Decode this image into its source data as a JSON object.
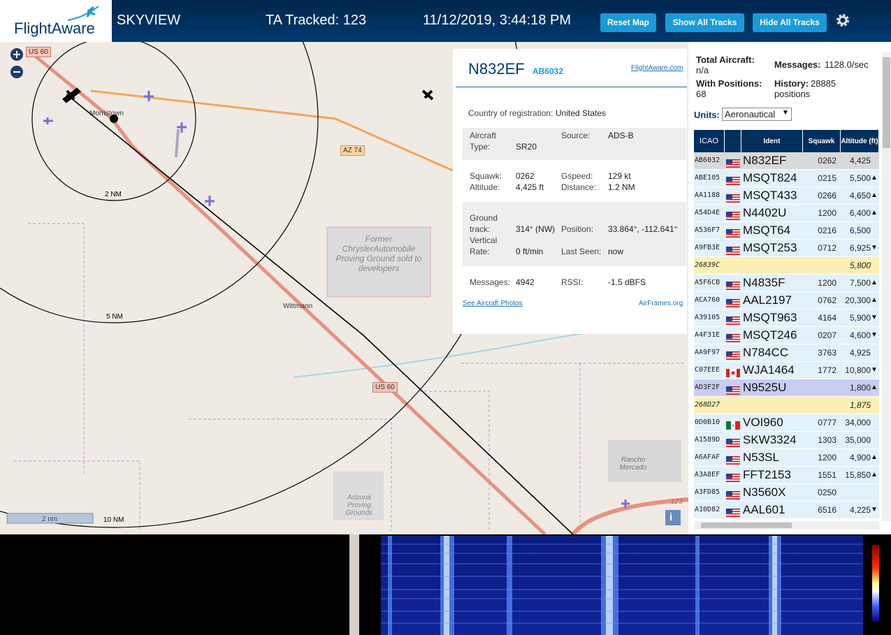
{
  "header": {
    "logo": "FlightAware",
    "title": "SKYVIEW",
    "tracked": "TA Tracked: 123",
    "datetime": "11/12/2019, 3:44:18 PM",
    "buttons": [
      "Reset Map",
      "Show All Tracks",
      "Hide All Tracks"
    ]
  },
  "map": {
    "labels": [
      "US 60",
      "AZ 74",
      "Morristown",
      "Wittmann",
      "2 NM",
      "5 NM",
      "10 NM",
      "US 60",
      "Former ChryslerAutomobile Proving Ground sold to developers",
      "Arizona Proving Grounds",
      "Rancho Mercado",
      "123"
    ],
    "scale": "2 nm",
    "info": "i"
  },
  "popup": {
    "ident": "N832EF",
    "icao": "AB6032",
    "link": "FlightAware.com",
    "country_label": "Country of registration:",
    "country": "United States",
    "fields": [
      {
        "label": "Aircraft Type:",
        "value": "SR20"
      },
      {
        "label": "Source:",
        "value": "ADS-B"
      },
      {
        "label": "Squawk:",
        "value": "0262"
      },
      {
        "label": "Gspeed:",
        "value": "129 kt"
      },
      {
        "label": "Altitude:",
        "value": "4,425 ft"
      },
      {
        "label": "Distance:",
        "value": "1.2 NM"
      },
      {
        "label": "Ground track:",
        "value": "314° (NW)"
      },
      {
        "label": "Position:",
        "value": "33.864°, -112.641°"
      },
      {
        "label": "Vertical Rate:",
        "value": "0 ft/min"
      },
      {
        "label": "Last Seen:",
        "value": "now"
      },
      {
        "label": "Messages:",
        "value": "4942"
      },
      {
        "label": "RSSI:",
        "value": "-1.5 dBFS"
      }
    ],
    "photos": "See Aircraft Photos",
    "airframes": "AirFrames.org"
  },
  "sidebar": {
    "total_label": "Total Aircraft:",
    "total": "n/a",
    "messages_label": "Messages:",
    "messages": "1128.0/sec",
    "positions_label": "With Positions:",
    "positions": "68",
    "history_label": "History:",
    "history": "28885 positions",
    "units_label": "Units:",
    "units": "Aeronautical"
  },
  "aircraft_table": {
    "columns": [
      "ICAO",
      "Ident",
      "Squawk",
      "Altitude (ft)"
    ],
    "rows": [
      {
        "icao": "AB6032",
        "flag": "us",
        "ident": "N832EF",
        "squawk": "0262",
        "altitude": "4,425",
        "trend": null,
        "color": "#d9d9d9"
      },
      {
        "icao": "ABE105",
        "flag": "us",
        "ident": "MSQT824",
        "squawk": "0215",
        "altitude": "5,500",
        "trend": "▲",
        "color": "#e3f1fb"
      },
      {
        "icao": "AA1188",
        "flag": "us",
        "ident": "MSQT433",
        "squawk": "0266",
        "altitude": "4,650",
        "trend": "▲",
        "color": "#e3f1fb"
      },
      {
        "icao": "A54D4E",
        "flag": "us",
        "ident": "N4402U",
        "squawk": "1200",
        "altitude": "6,400",
        "trend": "▲",
        "color": "#e3f1fb"
      },
      {
        "icao": "A536F7",
        "flag": "us",
        "ident": "MSQT64",
        "squawk": "0216",
        "altitude": "6,500",
        "trend": null,
        "color": "#e3f1fb"
      },
      {
        "icao": "A9FB3E",
        "flag": "us",
        "ident": "MSQT253",
        "squawk": "0712",
        "altitude": "6,925",
        "trend": "▼",
        "color": "#e3f1fb"
      },
      {
        "icao": "26839C",
        "flag": null,
        "ident": null,
        "squawk": null,
        "altitude": "5,800",
        "trend": null,
        "color": "#fdf0b4"
      },
      {
        "icao": "A5F6CB",
        "flag": "us",
        "ident": "N4835F",
        "squawk": "1200",
        "altitude": "7,500",
        "trend": "▲",
        "color": "#e3f1fb"
      },
      {
        "icao": "ACA760",
        "flag": "us",
        "ident": "AAL2197",
        "squawk": "0762",
        "altitude": "20,300",
        "trend": "▲",
        "color": "#e3f1fb"
      },
      {
        "icao": "A39105",
        "flag": "us",
        "ident": "MSQT963",
        "squawk": "4164",
        "altitude": "5,900",
        "trend": "▼",
        "color": "#e3f1fb"
      },
      {
        "icao": "A4F31E",
        "flag": "us",
        "ident": "MSQT246",
        "squawk": "0207",
        "altitude": "4,600",
        "trend": "▼",
        "color": "#e3f1fb"
      },
      {
        "icao": "AA9F97",
        "flag": "us",
        "ident": "N784CC",
        "squawk": "3763",
        "altitude": "4,925",
        "trend": null,
        "color": "#e3f1fb"
      },
      {
        "icao": "C07EEE",
        "flag": "ca",
        "ident": "WJA1464",
        "squawk": "1772",
        "altitude": "10,800",
        "trend": "▼",
        "color": "#e3f1fb"
      },
      {
        "icao": "AD3F2F",
        "flag": "us",
        "ident": "N9525U",
        "squawk": null,
        "altitude": "1,800",
        "trend": "▲",
        "color": "#c9cdf2"
      },
      {
        "icao": "268D27",
        "flag": null,
        "ident": null,
        "squawk": null,
        "altitude": "1,875",
        "trend": null,
        "color": "#fdf0b4"
      },
      {
        "icao": "0D0B10",
        "flag": "mx",
        "ident": "VOI960",
        "squawk": "0777",
        "altitude": "34,000",
        "trend": null,
        "color": "#e3f1fb"
      },
      {
        "icao": "A1589D",
        "flag": "us",
        "ident": "SKW3324",
        "squawk": "1303",
        "altitude": "35,000",
        "trend": null,
        "color": "#e3f1fb"
      },
      {
        "icao": "A6AFAF",
        "flag": "us",
        "ident": "N53SL",
        "squawk": "1200",
        "altitude": "4,900",
        "trend": "▲",
        "color": "#e3f1fb"
      },
      {
        "icao": "A3A8EF",
        "flag": "us",
        "ident": "FFT2153",
        "squawk": "1551",
        "altitude": "15,850",
        "trend": "▲",
        "color": "#e3f1fb"
      },
      {
        "icao": "A3FD85",
        "flag": "us",
        "ident": "N3560X",
        "squawk": "0250",
        "altitude": null,
        "trend": null,
        "color": "#e3f1fb"
      },
      {
        "icao": "A10D82",
        "flag": "us",
        "ident": "AAL601",
        "squawk": "6516",
        "altitude": "4,225",
        "trend": "▼",
        "color": "#e3f1fb"
      }
    ]
  }
}
